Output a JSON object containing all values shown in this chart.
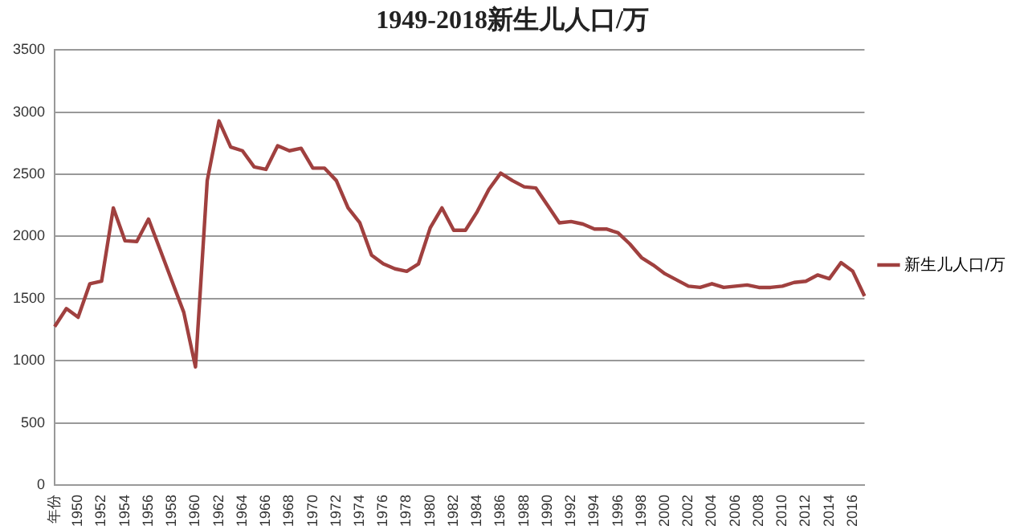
{
  "chart_data": {
    "type": "line",
    "title": "1949-2018新生儿人口/万",
    "categories": [
      "年份",
      null,
      "1950",
      null,
      "1952",
      null,
      "1954",
      null,
      "1956",
      null,
      "1958",
      null,
      "1960",
      null,
      "1962",
      null,
      "1964",
      null,
      "1966",
      null,
      "1968",
      null,
      "1970",
      null,
      "1972",
      null,
      "1974",
      null,
      "1976",
      null,
      "1978",
      null,
      "1980",
      null,
      "1982",
      null,
      "1984",
      null,
      "1986",
      null,
      "1988",
      null,
      "1990",
      null,
      "1992",
      null,
      "1994",
      null,
      "1996",
      null,
      "1998",
      null,
      "2000",
      null,
      "2002",
      null,
      "2004",
      null,
      "2006",
      null,
      "2008",
      null,
      "2010",
      null,
      "2012",
      null,
      "2014",
      null,
      "2016",
      null
    ],
    "series": [
      {
        "name": "新生儿人口/万",
        "color": "#a0403f",
        "values": [
          1275,
          1420,
          1350,
          1620,
          1640,
          2230,
          1965,
          1960,
          2140,
          1890,
          1640,
          1390,
          950,
          2450,
          2930,
          2720,
          2690,
          2560,
          2540,
          2730,
          2690,
          2710,
          2550,
          2550,
          2450,
          2230,
          2110,
          1850,
          1780,
          1740,
          1720,
          1780,
          2070,
          2230,
          2050,
          2050,
          2200,
          2380,
          2510,
          2450,
          2400,
          2390,
          2250,
          2110,
          2120,
          2100,
          2060,
          2060,
          2030,
          1940,
          1830,
          1770,
          1700,
          1650,
          1600,
          1590,
          1620,
          1590,
          1600,
          1610,
          1590,
          1590,
          1600,
          1630,
          1640,
          1690,
          1660,
          1790,
          1720,
          1520
        ]
      }
    ],
    "ylim": [
      0,
      3500
    ],
    "yticks": [
      0,
      500,
      1000,
      1500,
      2000,
      2500,
      3000,
      3500
    ],
    "grid": "y",
    "legend": "right",
    "marker": "none",
    "line_style": "solid"
  }
}
